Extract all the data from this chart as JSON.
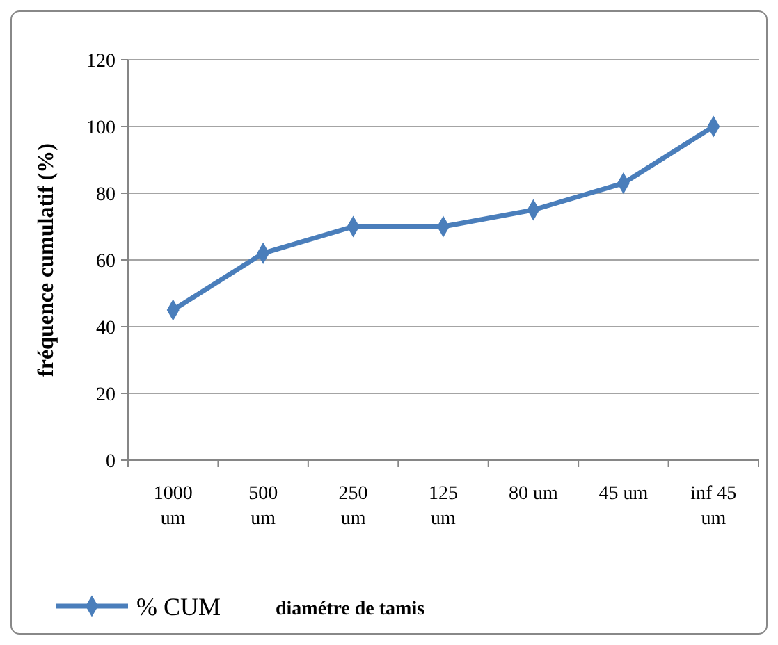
{
  "chart_data": {
    "type": "line",
    "xlabel": "diamétre de tamis",
    "ylabel": "fréquence cumulatif (%)",
    "categories": [
      "1000 um",
      "500 um",
      "250 um",
      "125 um",
      "80 um",
      "45 um",
      "inf 45 um"
    ],
    "series": [
      {
        "name": "% CUM",
        "color": "#4a7ebb",
        "values": [
          45,
          62,
          70,
          70,
          75,
          83,
          100
        ]
      }
    ],
    "ylim": [
      0,
      120
    ],
    "yticks": [
      0,
      20,
      40,
      60,
      80,
      100,
      120
    ],
    "grid": "y",
    "legend": "bottom",
    "marker": "diamond",
    "line_style": "solid"
  }
}
